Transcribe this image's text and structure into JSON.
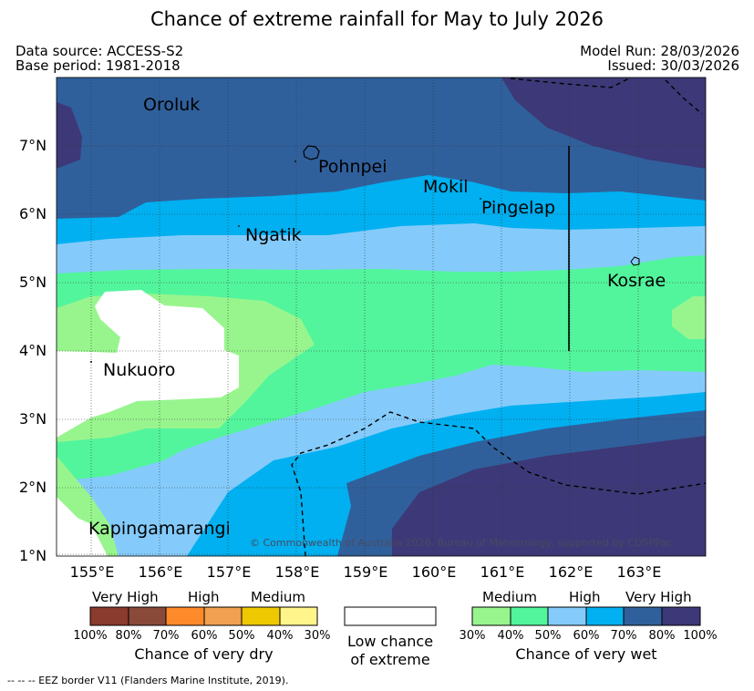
{
  "title": "Chance of extreme rainfall for May to July 2026",
  "header": {
    "data_source": "Data source: ACCESS-S2",
    "base_period": "Base period: 1981-2018",
    "model_run": "Model Run: 28/03/2026",
    "issued": "Issued: 30/03/2026"
  },
  "map": {
    "lat_labels": [
      "7°N",
      "6°N",
      "5°N",
      "4°N",
      "3°N",
      "2°N",
      "1°N"
    ],
    "lon_labels": [
      "155°E",
      "156°E",
      "157°E",
      "158°E",
      "159°E",
      "160°E",
      "161°E",
      "162°E",
      "163°E"
    ],
    "places": {
      "oroluk": "Oroluk",
      "pohnpei": "Pohnpei",
      "mokil": "Mokil",
      "pingelap": "Pingelap",
      "ngatik": "Ngatik",
      "kosrae": "Kosrae",
      "nukuoro": "Nukuoro",
      "kapingamarangi": "Kapingamarangi"
    },
    "copyright": "© Commonwealth of Australia 2026, Bureau of Meteorology, supported by COSPPac"
  },
  "colors": {
    "dry_very_high_1": "#8b3a2e",
    "dry_very_high_2": "#8a4a3a",
    "dry_high_1": "#ff8a2a",
    "dry_high_2": "#f0a050",
    "dry_medium_1": "#eec800",
    "dry_medium_2": "#fff58a",
    "wet_medium_1": "#98f58e",
    "wet_medium_2": "#52f59c",
    "wet_high_1": "#84cbfb",
    "wet_high_2": "#00b0f0",
    "wet_very_high_1": "#30609c",
    "wet_very_high_2": "#3d3877",
    "low_chance": "#ffffff"
  },
  "legend": {
    "dry": {
      "very_high": "Very High",
      "high": "High",
      "medium": "Medium",
      "percentages": [
        "100%",
        "80%",
        "70%",
        "60%",
        "50%",
        "40%",
        "30%"
      ],
      "caption": "Chance of very dry"
    },
    "low": {
      "line1": "Low chance",
      "line2": "of extreme"
    },
    "wet": {
      "medium": "Medium",
      "high": "High",
      "very_high": "Very High",
      "percentages": [
        "30%",
        "40%",
        "50%",
        "60%",
        "70%",
        "80%",
        "100%"
      ],
      "caption": "Chance of very wet"
    }
  },
  "footer": "--  --  -- EEZ border V11 (Flanders Marine Institute, 2019)."
}
